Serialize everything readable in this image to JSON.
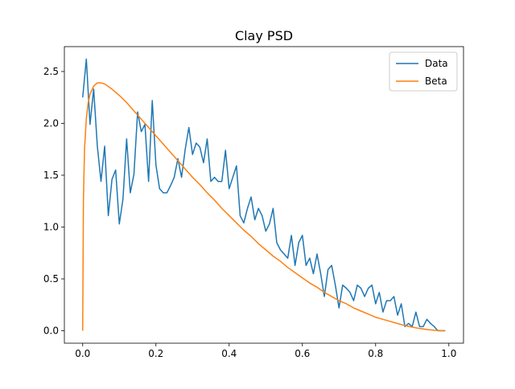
{
  "chart_data": {
    "type": "line",
    "title": "Clay PSD",
    "xlabel": "",
    "ylabel": "",
    "xlim": [
      -0.05,
      1.04
    ],
    "ylim": [
      -0.12,
      2.74
    ],
    "xticks": [
      0.0,
      0.2,
      0.4,
      0.6,
      0.8,
      1.0
    ],
    "xtick_labels": [
      "0.0",
      "0.2",
      "0.4",
      "0.6",
      "0.8",
      "1.0"
    ],
    "yticks": [
      0.0,
      0.5,
      1.0,
      1.5,
      2.0,
      2.5
    ],
    "ytick_labels": [
      "0.0",
      "0.5",
      "1.0",
      "1.5",
      "2.0",
      "2.5"
    ],
    "grid": false,
    "legend_position": "top-right",
    "series": [
      {
        "name": "Data",
        "color": "#1f77b4",
        "x": [
          0.0,
          0.01,
          0.02,
          0.03,
          0.04,
          0.05,
          0.06,
          0.07,
          0.08,
          0.09,
          0.1,
          0.11,
          0.12,
          0.13,
          0.14,
          0.15,
          0.16,
          0.17,
          0.18,
          0.19,
          0.2,
          0.21,
          0.22,
          0.23,
          0.24,
          0.25,
          0.26,
          0.27,
          0.28,
          0.29,
          0.3,
          0.31,
          0.32,
          0.33,
          0.34,
          0.35,
          0.36,
          0.37,
          0.38,
          0.39,
          0.4,
          0.41,
          0.42,
          0.43,
          0.44,
          0.45,
          0.46,
          0.47,
          0.48,
          0.49,
          0.5,
          0.51,
          0.52,
          0.53,
          0.54,
          0.55,
          0.56,
          0.57,
          0.58,
          0.59,
          0.6,
          0.61,
          0.62,
          0.63,
          0.64,
          0.65,
          0.66,
          0.67,
          0.68,
          0.69,
          0.7,
          0.71,
          0.72,
          0.73,
          0.74,
          0.75,
          0.76,
          0.77,
          0.78,
          0.79,
          0.8,
          0.81,
          0.82,
          0.83,
          0.84,
          0.85,
          0.86,
          0.87,
          0.88,
          0.89,
          0.9,
          0.91,
          0.92,
          0.93,
          0.94,
          0.95,
          0.96,
          0.97,
          0.98,
          0.99
        ],
        "values": [
          2.25,
          2.62,
          1.99,
          2.33,
          1.78,
          1.44,
          1.78,
          1.11,
          1.46,
          1.55,
          1.03,
          1.27,
          1.85,
          1.33,
          1.51,
          2.11,
          1.92,
          1.99,
          1.44,
          2.22,
          1.6,
          1.37,
          1.33,
          1.33,
          1.4,
          1.48,
          1.66,
          1.48,
          1.75,
          1.96,
          1.7,
          1.81,
          1.77,
          1.62,
          1.85,
          1.44,
          1.48,
          1.44,
          1.44,
          1.74,
          1.37,
          1.48,
          1.59,
          1.11,
          1.04,
          1.18,
          1.29,
          1.07,
          1.18,
          1.11,
          0.96,
          1.03,
          1.18,
          0.85,
          0.78,
          0.74,
          0.7,
          0.92,
          0.63,
          0.85,
          0.92,
          0.63,
          0.7,
          0.55,
          0.74,
          0.55,
          0.33,
          0.59,
          0.63,
          0.44,
          0.22,
          0.44,
          0.41,
          0.37,
          0.29,
          0.44,
          0.41,
          0.33,
          0.41,
          0.44,
          0.26,
          0.37,
          0.18,
          0.29,
          0.29,
          0.33,
          0.15,
          0.26,
          0.04,
          0.07,
          0.04,
          0.18,
          0.04,
          0.04,
          0.11,
          0.07,
          0.04,
          0.0,
          0.0,
          0.0
        ]
      },
      {
        "name": "Beta",
        "color": "#ff7f0e",
        "x": [
          0.0,
          0.002,
          0.005,
          0.01,
          0.015,
          0.02,
          0.03,
          0.04,
          0.05,
          0.06,
          0.08,
          0.1,
          0.12,
          0.14,
          0.16,
          0.18,
          0.2,
          0.22,
          0.24,
          0.26,
          0.28,
          0.3,
          0.32,
          0.34,
          0.36,
          0.38,
          0.4,
          0.42,
          0.44,
          0.46,
          0.48,
          0.5,
          0.52,
          0.54,
          0.56,
          0.58,
          0.6,
          0.62,
          0.64,
          0.66,
          0.68,
          0.7,
          0.72,
          0.74,
          0.76,
          0.78,
          0.8,
          0.82,
          0.84,
          0.86,
          0.88,
          0.9,
          0.92,
          0.94,
          0.96,
          0.98,
          0.99
        ],
        "values": [
          0.0,
          1.25,
          1.75,
          2.05,
          2.2,
          2.28,
          2.36,
          2.39,
          2.39,
          2.38,
          2.33,
          2.27,
          2.2,
          2.12,
          2.04,
          1.96,
          1.88,
          1.8,
          1.72,
          1.64,
          1.56,
          1.48,
          1.41,
          1.33,
          1.26,
          1.18,
          1.11,
          1.04,
          0.97,
          0.91,
          0.84,
          0.78,
          0.72,
          0.67,
          0.61,
          0.56,
          0.51,
          0.46,
          0.42,
          0.37,
          0.33,
          0.29,
          0.26,
          0.22,
          0.19,
          0.16,
          0.13,
          0.11,
          0.09,
          0.07,
          0.05,
          0.035,
          0.022,
          0.012,
          0.005,
          0.001,
          0.0
        ]
      }
    ]
  }
}
